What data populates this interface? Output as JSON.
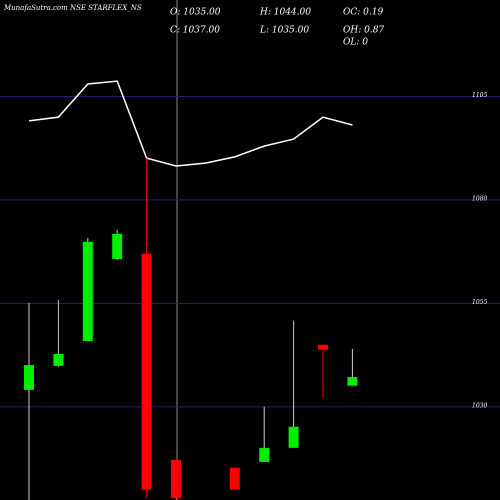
{
  "chart_data": {
    "type": "candlestick",
    "title": "MunafaSutra.com NSE STARFLEX_NS",
    "info": [
      "O: 1035.00",
      "H: 1044.00",
      "OC: 0.19",
      "C: 1037.00",
      "L: 1035.00",
      "OH: 0.87",
      "OL: 0"
    ],
    "categories": [
      null,
      null,
      null,
      null,
      null,
      null,
      null,
      null,
      null,
      null,
      null,
      null
    ],
    "open": [
      1034.1,
      1039.9,
      1045.9,
      1065.7,
      1067.0,
      1017.2,
      null,
      1015.3,
      1016.7,
      1020.1,
      1045.0,
      1035.1
    ],
    "high": [
      1055.1,
      1055.8,
      1070.8,
      1072.8,
      1090.1,
      1017.2,
      null,
      1015.3,
      1030.0,
      1050.8,
      1045.0,
      1044.0
    ],
    "low": [
      1007.0,
      1039.7,
      1045.9,
      1065.5,
      1008.0,
      1007.0,
      null,
      1010.0,
      1016.7,
      1020.1,
      1032.2,
      1035.1
    ],
    "close": [
      1040.1,
      1042.8,
      1069.9,
      1071.8,
      1010.0,
      1008.0,
      null,
      1010.0,
      1020.1,
      1025.2,
      1043.8,
      1037.2
    ],
    "up_color": "#00ee00",
    "down_color": "#ff0000",
    "line": {
      "color": "#ffffff",
      "values": [
        1099.1,
        1100.0,
        1108.0,
        1108.7,
        1090.1,
        1088.2,
        1088.9,
        1090.4,
        1093.0,
        1094.7,
        1100.0,
        1098.1
      ]
    },
    "ylim": [
      1007.5,
      1128.3
    ],
    "yticks": [
      1030,
      1055,
      1080,
      1105
    ],
    "grid": true
  }
}
